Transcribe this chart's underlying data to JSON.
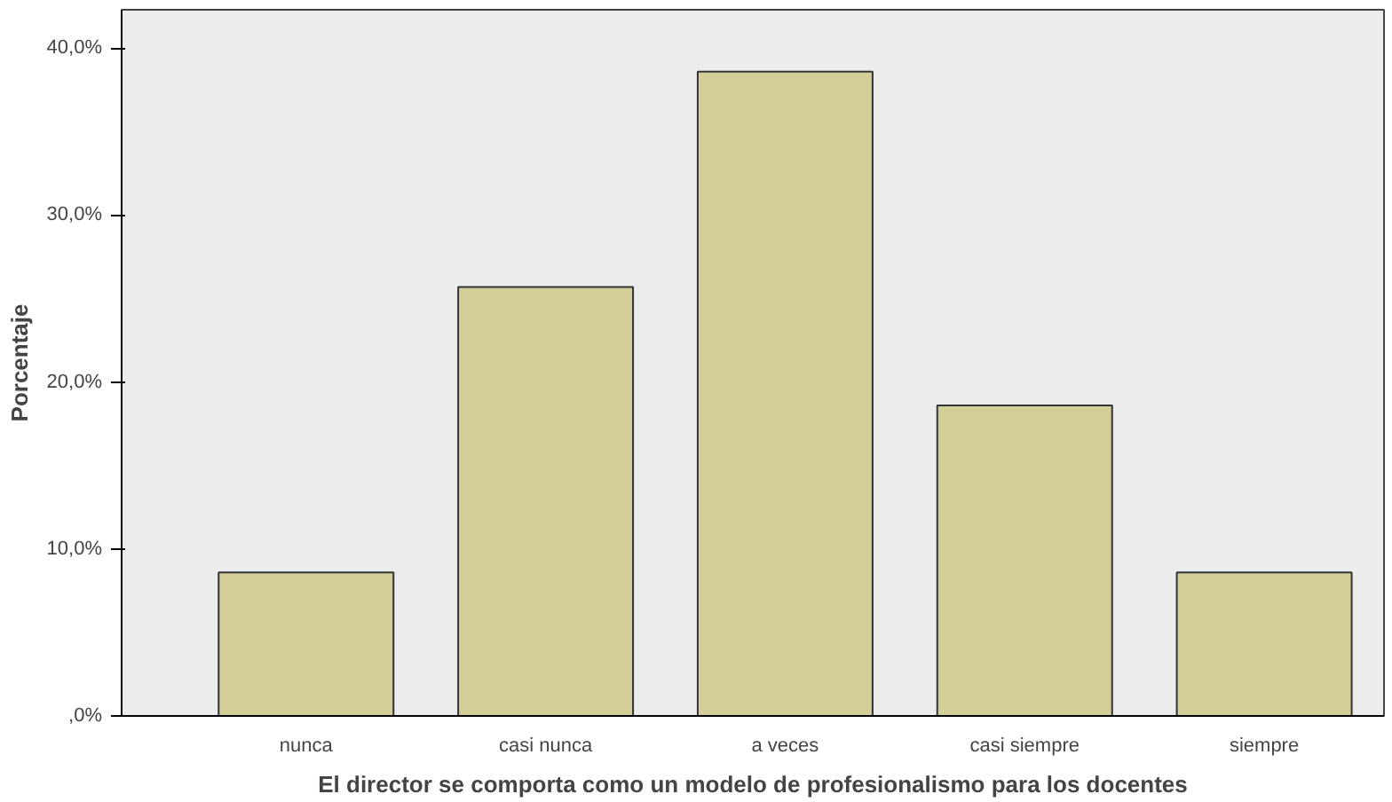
{
  "chart_data": {
    "type": "bar",
    "xlabel": "El director se comporta como un modelo de profesionalismo para los docentes",
    "ylabel": "Porcentaje",
    "categories": [
      "nunca",
      "casi nunca",
      "a veces",
      "casi siempre",
      "siempre"
    ],
    "values": [
      8.6,
      25.7,
      38.6,
      18.6,
      8.6
    ],
    "color": "#d3ce97",
    "ylim": [
      0,
      42.3
    ],
    "yticks": [
      {
        "value": 0,
        "label": ",0%"
      },
      {
        "value": 10,
        "label": "10,0%"
      },
      {
        "value": 20,
        "label": "20,0%"
      },
      {
        "value": 30,
        "label": "30,0%"
      },
      {
        "value": 40,
        "label": "40,0%"
      }
    ],
    "grid": false
  }
}
